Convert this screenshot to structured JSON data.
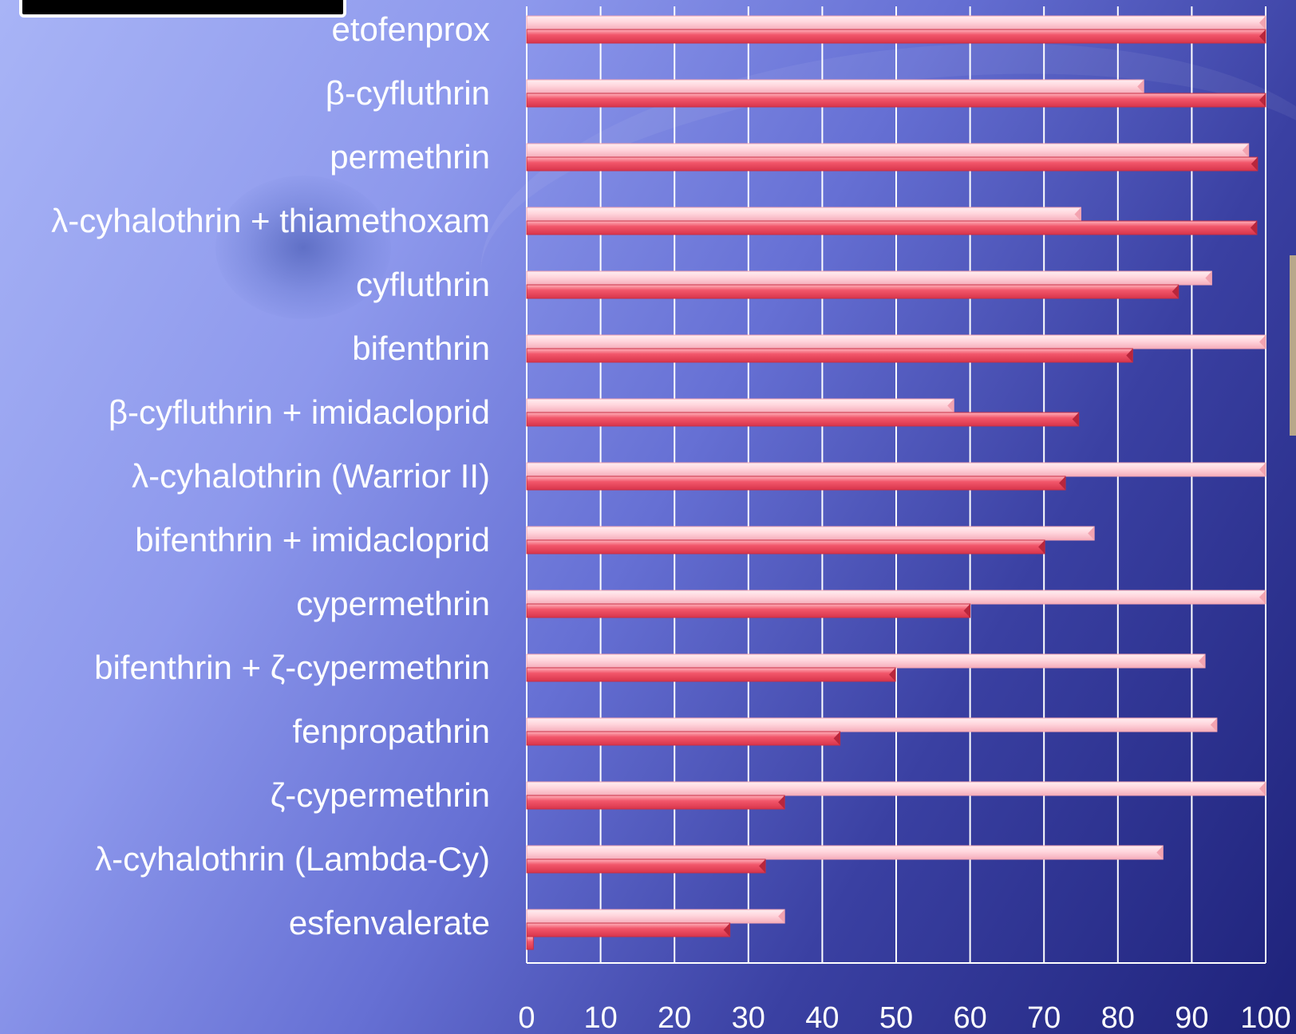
{
  "chart_data": {
    "type": "bar",
    "orientation": "horizontal",
    "categories": [
      "etofenprox",
      "β-cyfluthrin",
      "permethrin",
      "λ-cyhalothrin + thiamethoxam",
      "cyfluthrin",
      "bifenthrin",
      "β-cyfluthrin + imidacloprid",
      "λ-cyhalothrin (Warrior II)",
      "bifenthrin + imidacloprid",
      "cypermethrin",
      "bifenthrin + ζ-cypermethrin",
      "fenpropathrin",
      "ζ-cypermethrin",
      "λ-cyhalothrin (Lambda-Cy)",
      "esfenvalerate"
    ],
    "series": [
      {
        "color": "#ffc8d0",
        "values": [
          100,
          83.5,
          97.7,
          75,
          92.7,
          100,
          57.8,
          100,
          76.8,
          100,
          91.8,
          93.4,
          100,
          86.1,
          34.9
        ]
      },
      {
        "color": "#ef4a5e",
        "values": [
          100,
          100,
          98.9,
          98.8,
          88.2,
          82,
          74.7,
          72.9,
          70.1,
          60,
          49.9,
          42.4,
          34.9,
          32.3,
          27.5
        ]
      },
      {
        "color": "#ef4a5e",
        "values": [
          null,
          null,
          null,
          null,
          null,
          null,
          null,
          null,
          null,
          null,
          null,
          null,
          null,
          null,
          0.9
        ]
      }
    ],
    "xlim": [
      0,
      100
    ],
    "xticks": [
      "0",
      "10",
      "20",
      "30",
      "40",
      "50",
      "60",
      "70",
      "80",
      "90",
      "100"
    ],
    "grid": true,
    "title": "",
    "xlabel": "",
    "ylabel": ""
  }
}
